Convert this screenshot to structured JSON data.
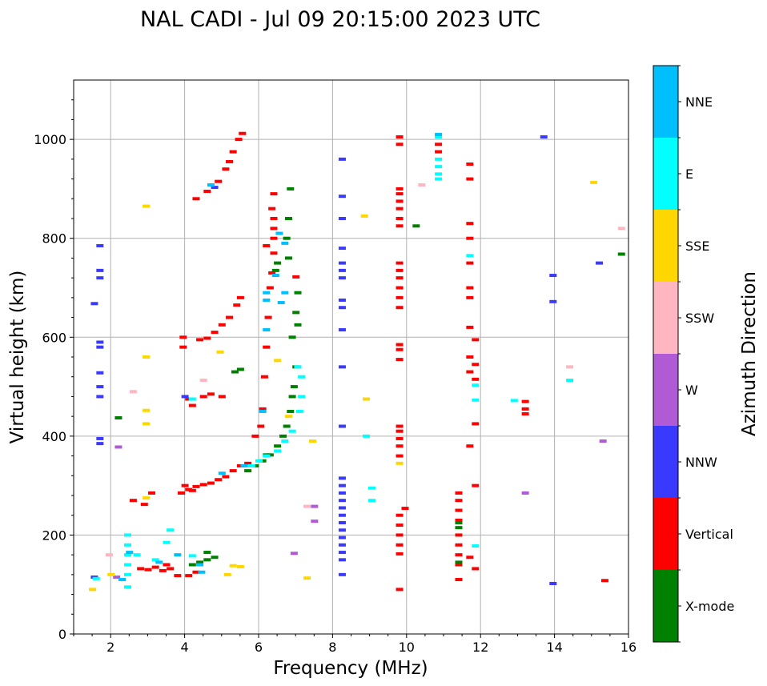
{
  "chart_data": {
    "type": "scatter",
    "title": "NAL CADI - Jul 09 20:15:00 2023 UTC",
    "xlabel": "Frequency (MHz)",
    "ylabel": "Virtual height (km)",
    "xlim": [
      1,
      16
    ],
    "ylim": [
      0,
      1120
    ],
    "xticks": [
      2,
      4,
      6,
      8,
      10,
      12,
      14,
      16
    ],
    "yticks": [
      0,
      200,
      400,
      600,
      800,
      1000
    ],
    "grid": true,
    "colorbar": {
      "title": "Azimuth Direction",
      "categories": [
        {
          "name": "X-mode",
          "color": "#008000"
        },
        {
          "name": "Vertical",
          "color": "#ff0000"
        },
        {
          "name": "NNW",
          "color": "#3a3aff"
        },
        {
          "name": "W",
          "color": "#b05ad6"
        },
        {
          "name": "SSW",
          "color": "#ffb6c1"
        },
        {
          "name": "SSE",
          "color": "#ffd700"
        },
        {
          "name": "E",
          "color": "#00ffff"
        },
        {
          "name": "NNE",
          "color": "#00bfff"
        }
      ]
    },
    "series": [
      {
        "name": "Vertical",
        "points": [
          [
            3.0,
            130
          ],
          [
            3.2,
            135
          ],
          [
            3.4,
            128
          ],
          [
            3.6,
            132
          ],
          [
            3.8,
            118
          ],
          [
            4.1,
            118
          ],
          [
            4.3,
            125
          ],
          [
            3.5,
            140
          ],
          [
            2.8,
            132
          ],
          [
            3.9,
            285
          ],
          [
            4.1,
            292
          ],
          [
            4.3,
            298
          ],
          [
            4.5,
            302
          ],
          [
            4.7,
            305
          ],
          [
            4.9,
            312
          ],
          [
            5.1,
            318
          ],
          [
            5.3,
            330
          ],
          [
            5.5,
            340
          ],
          [
            5.7,
            345
          ],
          [
            4.0,
            300
          ],
          [
            4.2,
            290
          ],
          [
            3.1,
            285
          ],
          [
            2.9,
            262
          ],
          [
            2.6,
            270
          ],
          [
            5.9,
            400
          ],
          [
            6.05,
            420
          ],
          [
            6.1,
            455
          ],
          [
            6.15,
            520
          ],
          [
            6.2,
            580
          ],
          [
            6.25,
            640
          ],
          [
            6.3,
            700
          ],
          [
            6.35,
            730
          ],
          [
            6.4,
            770
          ],
          [
            6.4,
            800
          ],
          [
            6.4,
            820
          ],
          [
            6.4,
            840
          ],
          [
            6.35,
            860
          ],
          [
            6.4,
            890
          ],
          [
            4.1,
            475
          ],
          [
            4.2,
            462
          ],
          [
            4.5,
            480
          ],
          [
            5.0,
            480
          ],
          [
            4.7,
            485
          ],
          [
            4.4,
            595
          ],
          [
            4.6,
            598
          ],
          [
            4.8,
            610
          ],
          [
            5.0,
            625
          ],
          [
            5.2,
            640
          ],
          [
            5.4,
            665
          ],
          [
            5.5,
            680
          ],
          [
            3.95,
            600
          ],
          [
            3.95,
            580
          ],
          [
            4.3,
            880
          ],
          [
            4.6,
            895
          ],
          [
            4.9,
            915
          ],
          [
            5.1,
            940
          ],
          [
            5.2,
            955
          ],
          [
            5.3,
            975
          ],
          [
            5.45,
            1000
          ],
          [
            5.55,
            1012
          ],
          [
            9.8,
            1005
          ],
          [
            9.8,
            990
          ],
          [
            9.8,
            900
          ],
          [
            9.8,
            890
          ],
          [
            9.8,
            875
          ],
          [
            9.8,
            860
          ],
          [
            9.8,
            840
          ],
          [
            9.8,
            825
          ],
          [
            9.8,
            750
          ],
          [
            9.8,
            735
          ],
          [
            9.8,
            720
          ],
          [
            9.8,
            700
          ],
          [
            9.8,
            680
          ],
          [
            9.8,
            660
          ],
          [
            9.8,
            585
          ],
          [
            9.8,
            575
          ],
          [
            9.8,
            555
          ],
          [
            9.8,
            420
          ],
          [
            9.8,
            410
          ],
          [
            9.8,
            395
          ],
          [
            9.8,
            380
          ],
          [
            9.8,
            360
          ],
          [
            9.8,
            240
          ],
          [
            9.8,
            220
          ],
          [
            9.8,
            200
          ],
          [
            9.8,
            180
          ],
          [
            9.8,
            162
          ],
          [
            9.8,
            90
          ],
          [
            9.95,
            254
          ],
          [
            10.85,
            990
          ],
          [
            10.85,
            975
          ],
          [
            11.4,
            110
          ],
          [
            11.4,
            140
          ],
          [
            11.4,
            160
          ],
          [
            11.4,
            180
          ],
          [
            11.4,
            200
          ],
          [
            11.4,
            230
          ],
          [
            11.4,
            250
          ],
          [
            11.4,
            270
          ],
          [
            11.4,
            285
          ],
          [
            11.7,
            950
          ],
          [
            11.7,
            920
          ],
          [
            11.7,
            830
          ],
          [
            11.7,
            800
          ],
          [
            11.7,
            750
          ],
          [
            11.7,
            700
          ],
          [
            11.7,
            680
          ],
          [
            11.7,
            620
          ],
          [
            11.7,
            560
          ],
          [
            11.7,
            530
          ],
          [
            11.7,
            380
          ],
          [
            11.7,
            155
          ],
          [
            11.85,
            595
          ],
          [
            11.85,
            545
          ],
          [
            11.85,
            515
          ],
          [
            11.85,
            425
          ],
          [
            11.85,
            300
          ],
          [
            11.85,
            132
          ],
          [
            13.2,
            470
          ],
          [
            13.2,
            455
          ],
          [
            13.2,
            445
          ],
          [
            15.35,
            108
          ],
          [
            7.0,
            722
          ],
          [
            6.2,
            785
          ]
        ]
      },
      {
        "name": "X-mode",
        "points": [
          [
            4.2,
            140
          ],
          [
            4.4,
            145
          ],
          [
            4.6,
            150
          ],
          [
            4.8,
            155
          ],
          [
            4.6,
            165
          ],
          [
            5.7,
            330
          ],
          [
            5.9,
            340
          ],
          [
            6.1,
            350
          ],
          [
            6.3,
            362
          ],
          [
            6.5,
            380
          ],
          [
            6.65,
            400
          ],
          [
            6.75,
            420
          ],
          [
            6.85,
            450
          ],
          [
            6.9,
            480
          ],
          [
            6.95,
            500
          ],
          [
            7.0,
            540
          ],
          [
            6.9,
            600
          ],
          [
            7.05,
            625
          ],
          [
            7.0,
            650
          ],
          [
            7.05,
            690
          ],
          [
            6.8,
            760
          ],
          [
            6.75,
            800
          ],
          [
            6.8,
            840
          ],
          [
            6.85,
            900
          ],
          [
            5.35,
            530
          ],
          [
            5.5,
            535
          ],
          [
            6.2,
            362
          ],
          [
            6.45,
            735
          ],
          [
            6.5,
            750
          ],
          [
            11.4,
            145
          ],
          [
            11.4,
            215
          ],
          [
            11.4,
            225
          ],
          [
            10.25,
            825
          ],
          [
            15.8,
            768
          ],
          [
            2.2,
            437
          ]
        ]
      },
      {
        "name": "NNW",
        "points": [
          [
            1.7,
            785
          ],
          [
            1.7,
            735
          ],
          [
            1.7,
            720
          ],
          [
            1.7,
            590
          ],
          [
            1.7,
            580
          ],
          [
            1.7,
            528
          ],
          [
            1.7,
            500
          ],
          [
            1.7,
            480
          ],
          [
            1.7,
            395
          ],
          [
            1.7,
            385
          ],
          [
            1.55,
            115
          ],
          [
            1.55,
            668
          ],
          [
            8.25,
            960
          ],
          [
            8.25,
            885
          ],
          [
            8.25,
            840
          ],
          [
            8.25,
            780
          ],
          [
            8.25,
            750
          ],
          [
            8.25,
            735
          ],
          [
            8.25,
            720
          ],
          [
            8.25,
            675
          ],
          [
            8.25,
            660
          ],
          [
            8.25,
            615
          ],
          [
            8.25,
            540
          ],
          [
            8.25,
            420
          ],
          [
            8.25,
            315
          ],
          [
            8.25,
            300
          ],
          [
            8.25,
            285
          ],
          [
            8.25,
            270
          ],
          [
            8.25,
            255
          ],
          [
            8.25,
            240
          ],
          [
            8.25,
            225
          ],
          [
            8.25,
            210
          ],
          [
            8.25,
            195
          ],
          [
            8.25,
            180
          ],
          [
            8.25,
            165
          ],
          [
            8.25,
            150
          ],
          [
            8.25,
            120
          ],
          [
            13.7,
            1005
          ],
          [
            13.95,
            725
          ],
          [
            13.95,
            672
          ],
          [
            13.95,
            102
          ],
          [
            15.2,
            750
          ],
          [
            4.8,
            903
          ],
          [
            4.0,
            480
          ]
        ]
      },
      {
        "name": "W",
        "points": [
          [
            2.2,
            378
          ],
          [
            7.5,
            258
          ],
          [
            7.5,
            228
          ],
          [
            6.95,
            163
          ],
          [
            13.2,
            285
          ],
          [
            15.3,
            390
          ],
          [
            2.15,
            115
          ]
        ]
      },
      {
        "name": "SSW",
        "points": [
          [
            2.6,
            490
          ],
          [
            7.3,
            258
          ],
          [
            10.4,
            908
          ],
          [
            14.4,
            540
          ],
          [
            15.8,
            820
          ],
          [
            4.5,
            513
          ],
          [
            1.95,
            160
          ]
        ]
      },
      {
        "name": "SSE",
        "points": [
          [
            2.95,
            865
          ],
          [
            2.95,
            560
          ],
          [
            2.95,
            452
          ],
          [
            2.95,
            425
          ],
          [
            2.95,
            275
          ],
          [
            8.85,
            845
          ],
          [
            8.9,
            475
          ],
          [
            7.45,
            390
          ],
          [
            7.3,
            113
          ],
          [
            15.05,
            913
          ],
          [
            5.15,
            120
          ],
          [
            5.3,
            138
          ],
          [
            5.5,
            136
          ],
          [
            6.5,
            553
          ],
          [
            4.95,
            570
          ],
          [
            6.8,
            440
          ],
          [
            9.8,
            345
          ],
          [
            2.0,
            120
          ],
          [
            1.5,
            90
          ]
        ]
      },
      {
        "name": "E",
        "points": [
          [
            2.45,
            200
          ],
          [
            2.45,
            180
          ],
          [
            2.45,
            160
          ],
          [
            2.45,
            140
          ],
          [
            2.45,
            120
          ],
          [
            2.45,
            95
          ],
          [
            2.7,
            160
          ],
          [
            3.2,
            150
          ],
          [
            3.5,
            185
          ],
          [
            3.6,
            210
          ],
          [
            4.2,
            158
          ],
          [
            5.8,
            340
          ],
          [
            6.0,
            350
          ],
          [
            6.2,
            360
          ],
          [
            6.5,
            370
          ],
          [
            6.7,
            390
          ],
          [
            6.9,
            410
          ],
          [
            7.1,
            450
          ],
          [
            7.15,
            480
          ],
          [
            7.15,
            520
          ],
          [
            7.05,
            540
          ],
          [
            8.9,
            400
          ],
          [
            9.05,
            295
          ],
          [
            9.05,
            270
          ],
          [
            10.85,
            1005
          ],
          [
            10.85,
            960
          ],
          [
            10.85,
            945
          ],
          [
            10.85,
            930
          ],
          [
            10.85,
            920
          ],
          [
            11.7,
            765
          ],
          [
            11.85,
            503
          ],
          [
            11.85,
            473
          ],
          [
            11.85,
            178
          ],
          [
            12.9,
            472
          ],
          [
            14.4,
            513
          ],
          [
            4.2,
            475
          ],
          [
            1.6,
            112
          ]
        ]
      },
      {
        "name": "NNE",
        "points": [
          [
            2.5,
            165
          ],
          [
            3.3,
            145
          ],
          [
            3.8,
            160
          ],
          [
            4.4,
            140
          ],
          [
            5.0,
            325
          ],
          [
            5.6,
            340
          ],
          [
            6.1,
            450
          ],
          [
            6.2,
            615
          ],
          [
            6.2,
            690
          ],
          [
            6.2,
            675
          ],
          [
            6.6,
            670
          ],
          [
            6.7,
            690
          ],
          [
            6.55,
            810
          ],
          [
            6.7,
            790
          ],
          [
            10.85,
            1010
          ],
          [
            4.7,
            908
          ],
          [
            2.3,
            110
          ],
          [
            4.45,
            125
          ],
          [
            6.45,
            725
          ]
        ]
      }
    ]
  }
}
